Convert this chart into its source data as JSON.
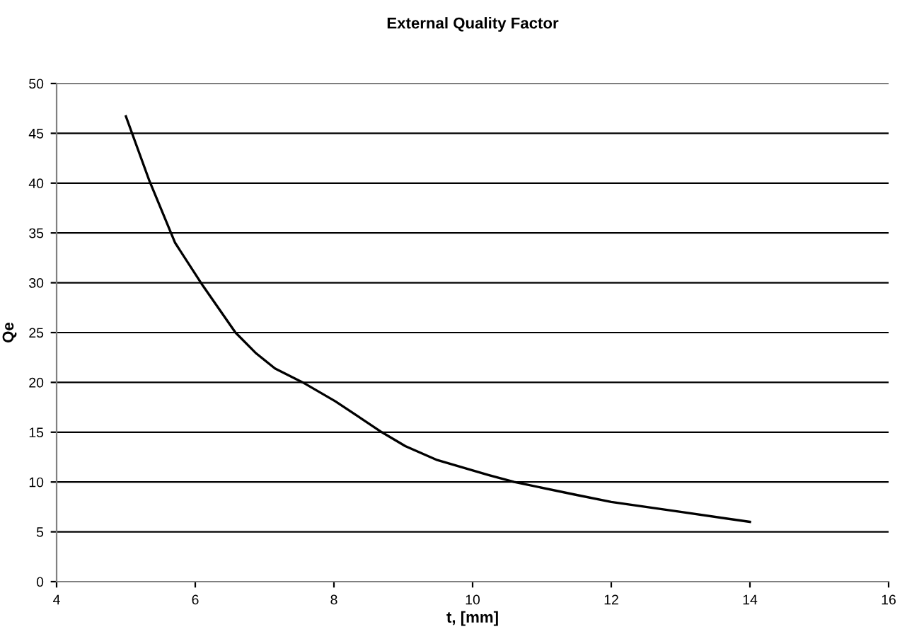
{
  "chart_data": {
    "type": "line",
    "title": "External Quality Factor",
    "xlabel": "t, [mm]",
    "ylabel": "Qe",
    "x": [
      5.0,
      5.34,
      5.71,
      6.11,
      6.58,
      6.88,
      7.15,
      7.55,
      8.02,
      8.69,
      9.03,
      9.49,
      10.23,
      10.6,
      11.5,
      12.0,
      13.0,
      14.0
    ],
    "series": [
      {
        "color": "#000000",
        "values": [
          46.7,
          40.2,
          34.0,
          29.7,
          25.0,
          22.9,
          21.4,
          20.0,
          18.1,
          15.0,
          13.6,
          12.2,
          10.7,
          10.0,
          8.7,
          8.0,
          7.0,
          6.0
        ]
      }
    ],
    "xlim": [
      4,
      16
    ],
    "xticks": [
      4,
      6,
      8,
      10,
      12,
      14,
      16
    ],
    "ylim": [
      0,
      50
    ],
    "yticks": [
      0,
      5,
      10,
      15,
      20,
      25,
      30,
      35,
      40,
      45,
      50
    ],
    "grid": "y",
    "legend": false,
    "marker": "none",
    "line_style": "solid"
  }
}
